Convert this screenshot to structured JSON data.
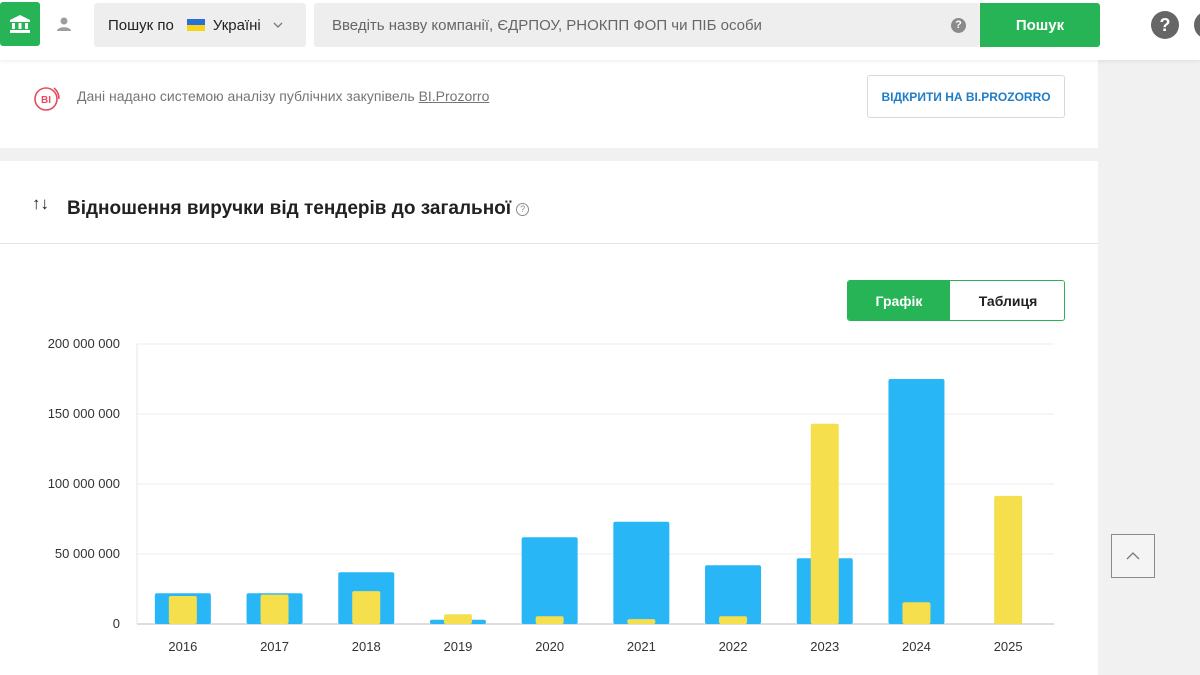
{
  "topbar": {
    "search_scope_label": "Пошук по",
    "search_country": "Україні",
    "search_placeholder": "Введіть назву компанії, ЄДРПОУ, РНОКПП ФОП чи ПІБ особи",
    "search_help_icon": "?",
    "search_button_label": "Пошук",
    "help_icon": "?",
    "icons": {
      "home": "bank-icon",
      "user": "user-icon",
      "dropdown": "chevron-down-icon",
      "help": "question-circle-icon"
    }
  },
  "source_card": {
    "logo_text": "ВІ",
    "text_prefix": "Дані надано системою аналізу публічних закупівель ",
    "link_text": "BI.Prozorro",
    "open_button_label": "ВІДКРИТИ НА BI.PROZORRO"
  },
  "chart_card": {
    "sort_icon": "↑↓",
    "title": "Відношення виручки від тендерів до загальної",
    "title_help": "?",
    "toggle": {
      "graph_label": "Графік",
      "table_label": "Таблиця",
      "active": "graph"
    }
  },
  "colors": {
    "accent_green": "#27b456",
    "series_blue": "#29b6f6",
    "series_yellow": "#f5df4d",
    "link_blue": "#1e7ec8"
  },
  "chart_data": {
    "type": "bar",
    "title": "Відношення виручки від тендерів до загальної",
    "xlabel": "",
    "ylabel": "",
    "categories": [
      "2016",
      "2017",
      "2018",
      "2019",
      "2020",
      "2021",
      "2022",
      "2023",
      "2024",
      "2025"
    ],
    "series": [
      {
        "color": "#29b6f6",
        "values": [
          22000000,
          22000000,
          37000000,
          3000000,
          62000000,
          73000000,
          42000000,
          47000000,
          175000000,
          0
        ]
      },
      {
        "color": "#f5df4d",
        "values": [
          20000000,
          21000000,
          23500000,
          7000000,
          5500000,
          3500000,
          5500000,
          143000000,
          15500000,
          91500000
        ]
      }
    ],
    "ylim": [
      0,
      200000000
    ],
    "yticks": [
      0,
      50000000,
      100000000,
      150000000,
      200000000
    ],
    "ytick_labels": [
      "0",
      "50 000 000",
      "100 000 000",
      "150 000 000",
      "200 000 000"
    ],
    "grid": true,
    "legend": "none"
  }
}
